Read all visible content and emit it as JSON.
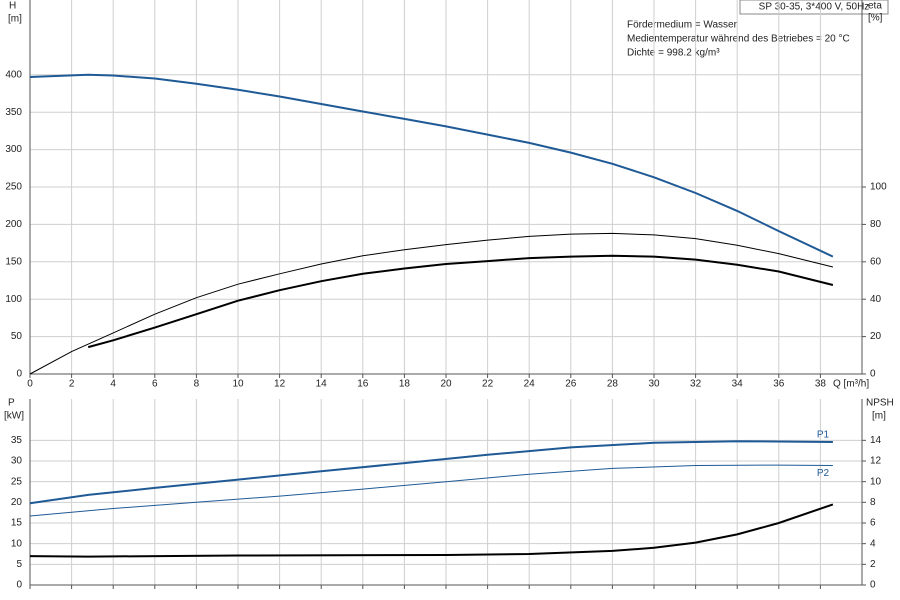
{
  "chart_data": [
    {
      "type": "line",
      "title": "SP 30-35, 3*400 V, 50Hz",
      "notes": [
        "Fördermedium = Wasser",
        "Medientemperatur während des Betriebes = 20 °C",
        "Dichte = 998.2 kg/m³"
      ],
      "ylabel": "H",
      "yunit": "[m]",
      "y2label": "eta",
      "y2unit": "[%]",
      "xlabel": "Q [m³/h]",
      "xlim": [
        0,
        40
      ],
      "xticks": [
        0,
        2,
        4,
        6,
        8,
        10,
        12,
        14,
        16,
        18,
        20,
        22,
        24,
        26,
        28,
        30,
        32,
        34,
        36,
        38
      ],
      "ylim": [
        0,
        500
      ],
      "yticks": [
        0,
        50,
        100,
        150,
        200,
        250,
        300,
        350,
        400
      ],
      "y2lim": [
        0,
        200
      ],
      "y2ticks": [
        0,
        20,
        40,
        60,
        80,
        100
      ],
      "grid": true,
      "series": [
        {
          "color": "#1f5a96",
          "linewidth": 2,
          "x": [
            0,
            2.8,
            4,
            6,
            8,
            10,
            12,
            14,
            16,
            18,
            20,
            22,
            24,
            26,
            28,
            30,
            32,
            34,
            36,
            38.6
          ],
          "values": [
            397,
            400,
            399,
            395,
            388,
            380,
            371,
            361,
            351,
            341,
            331,
            320,
            309,
            296,
            281,
            263,
            242,
            218,
            191,
            157
          ]
        },
        {
          "color": "#000000",
          "linewidth": 1,
          "axis": "y2",
          "x": [
            0,
            2,
            4,
            6,
            8,
            10,
            12,
            14,
            16,
            18,
            20,
            22,
            24,
            26,
            28,
            30,
            32,
            34,
            36,
            38.6
          ],
          "values": [
            0,
            12,
            22,
            32,
            40.8,
            48,
            53.6,
            58.8,
            63.2,
            66.4,
            69.2,
            71.6,
            73.6,
            74.8,
            75.2,
            74.4,
            72.4,
            68.8,
            64.4,
            57.2
          ]
        },
        {
          "color": "#000000",
          "linewidth": 2,
          "axis": "y2",
          "x": [
            2.8,
            4,
            6,
            8,
            10,
            12,
            14,
            16,
            18,
            20,
            22,
            24,
            26,
            28,
            30,
            32,
            34,
            36,
            38.6
          ],
          "values": [
            14.4,
            18,
            24.8,
            32,
            39.2,
            44.8,
            49.6,
            53.6,
            56.4,
            58.8,
            60.4,
            62,
            62.8,
            63.2,
            62.8,
            61.2,
            58.4,
            54.8,
            47.6
          ]
        }
      ]
    },
    {
      "type": "line",
      "ylabel": "P",
      "yunit": "[kW]",
      "y2label": "NPSH",
      "y2unit": "[m]",
      "xlim": [
        0,
        40
      ],
      "xticks": [
        0,
        2,
        4,
        6,
        8,
        10,
        12,
        14,
        16,
        18,
        20,
        22,
        24,
        26,
        28,
        30,
        32,
        34,
        36,
        38
      ],
      "ylim": [
        0,
        45
      ],
      "yticks": [
        0,
        5,
        10,
        15,
        20,
        25,
        30,
        35
      ],
      "y2lim": [
        0,
        18
      ],
      "y2ticks": [
        0,
        2,
        4,
        6,
        8,
        10,
        12,
        14
      ],
      "grid": true,
      "series": [
        {
          "name": "P1",
          "color": "#1f5a96",
          "linewidth": 2,
          "x": [
            0,
            2.8,
            6,
            10,
            14,
            18,
            22,
            26,
            30,
            34,
            38.6
          ],
          "values": [
            19.8,
            21.8,
            23.5,
            25.5,
            27.5,
            29.5,
            31.5,
            33.3,
            34.4,
            34.8,
            34.6
          ]
        },
        {
          "name": "P2",
          "color": "#1f5a96",
          "linewidth": 1,
          "x": [
            0,
            4,
            8,
            12,
            16,
            20,
            24,
            28,
            32,
            36,
            38.6
          ],
          "values": [
            16.7,
            18.5,
            20,
            21.5,
            23.2,
            25,
            26.8,
            28.2,
            28.9,
            29,
            28.9
          ]
        },
        {
          "color": "#000000",
          "linewidth": 2,
          "axis": "y2",
          "x": [
            0,
            2.8,
            10,
            20,
            24,
            28,
            30,
            32,
            34,
            36,
            38.6
          ],
          "values": [
            2.8,
            2.75,
            2.85,
            2.9,
            3.0,
            3.3,
            3.6,
            4.1,
            4.9,
            6.0,
            7.8
          ]
        }
      ]
    }
  ]
}
